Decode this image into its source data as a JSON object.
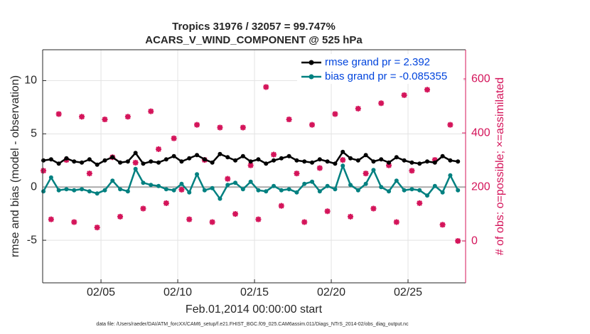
{
  "chart_data": {
    "type": "line",
    "title": "Tropics 31976 / 32057 = 99.747%",
    "subtitle": "ACARS_V_WIND_COMPONENT @ 525 hPa",
    "y_label": "rmse and bias (model - observation)",
    "y2_label": "# of obs: o=possible; ×=assimilated",
    "x_label": "Feb.01,2014 00:00:00 start",
    "footnote": "data file: /Users/raeder/DAI/ATM_forcXX/CAM6_setup/f.e21.FHIST_BGC.f09_025.CAM6assim.011/Diags_NTrS_2014-02/obs_diag_output.nc",
    "x": [
      1.25,
      1.75,
      2.25,
      2.75,
      3.25,
      3.75,
      4.25,
      4.75,
      5.25,
      5.75,
      6.25,
      6.75,
      7.25,
      7.75,
      8.25,
      8.75,
      9.25,
      9.75,
      10.25,
      10.75,
      11.25,
      11.75,
      12.25,
      12.75,
      13.25,
      13.75,
      14.25,
      14.75,
      15.25,
      15.75,
      16.25,
      16.75,
      17.25,
      17.75,
      18.25,
      18.75,
      19.25,
      19.75,
      20.25,
      20.75,
      21.25,
      21.75,
      22.25,
      22.75,
      23.25,
      23.75,
      24.25,
      24.75,
      25.25,
      25.75,
      26.25,
      26.75,
      27.25,
      27.75,
      28.25
    ],
    "series": [
      {
        "name": "rmse grand pr = 2.392",
        "color": "#000000",
        "values": [
          2.5,
          2.6,
          2.2,
          2.7,
          2.4,
          2.3,
          2.6,
          2.1,
          2.5,
          2.8,
          2.3,
          2.4,
          3.2,
          2.2,
          2.4,
          2.3,
          2.6,
          2.9,
          2.4,
          2.7,
          3.0,
          2.6,
          2.3,
          3.1,
          2.8,
          2.5,
          2.9,
          2.4,
          2.6,
          2.2,
          2.5,
          2.7,
          2.9,
          2.5,
          2.4,
          2.3,
          2.6,
          2.4,
          2.2,
          3.3,
          2.7,
          2.5,
          3.0,
          2.4,
          2.6,
          2.3,
          2.8,
          2.5,
          2.3,
          2.2,
          2.4,
          2.3,
          2.9,
          2.5,
          2.4
        ]
      },
      {
        "name": "bias grand pr = -0.085355",
        "color": "#008080",
        "values": [
          -0.4,
          0.9,
          -0.3,
          -0.2,
          -0.3,
          -0.2,
          -0.4,
          -0.6,
          -0.3,
          0.6,
          -0.2,
          -0.4,
          1.7,
          0.4,
          0.2,
          0.1,
          -0.2,
          -0.3,
          0.3,
          -0.5,
          1.2,
          -0.3,
          -0.1,
          -1.1,
          0.2,
          0.4,
          -0.2,
          0.5,
          -0.3,
          -0.4,
          0.1,
          -0.3,
          -0.2,
          -0.5,
          0.3,
          0.5,
          -0.4,
          0.1,
          -0.2,
          2.0,
          0.2,
          -0.3,
          0.3,
          1.6,
          0.0,
          -0.4,
          0.6,
          -0.3,
          -0.2,
          -0.3,
          -0.8,
          0.1,
          -0.5,
          1.1,
          -0.3
        ]
      }
    ],
    "obs": {
      "axis": "y2",
      "color": "#d4145a",
      "values": [
        260,
        80,
        470,
        300,
        70,
        460,
        250,
        50,
        450,
        310,
        90,
        460,
        290,
        120,
        480,
        340,
        140,
        380,
        190,
        80,
        430,
        300,
        70,
        420,
        230,
        100,
        420,
        280,
        80,
        570,
        320,
        130,
        450,
        250,
        70,
        430,
        270,
        110,
        470,
        300,
        90,
        490,
        250,
        120,
        510,
        280,
        70,
        540,
        260,
        140,
        560,
        300,
        60,
        430,
        0
      ]
    },
    "xlim": [
      1.2,
      28.75
    ],
    "xticks": [
      {
        "value": 5,
        "label": "02/05"
      },
      {
        "value": 10,
        "label": "02/10"
      },
      {
        "value": 15,
        "label": "02/15"
      },
      {
        "value": 20,
        "label": "02/20"
      },
      {
        "value": 25,
        "label": "02/25"
      }
    ],
    "ylim": [
      -9,
      12.9
    ],
    "yticks": [
      -5,
      0,
      5,
      10
    ],
    "y2lim": [
      -155,
      708
    ],
    "y2ticks": [
      0,
      200,
      400,
      600
    ],
    "legend": "top-right",
    "legend_text_color": "#0044dd",
    "grid": true
  }
}
